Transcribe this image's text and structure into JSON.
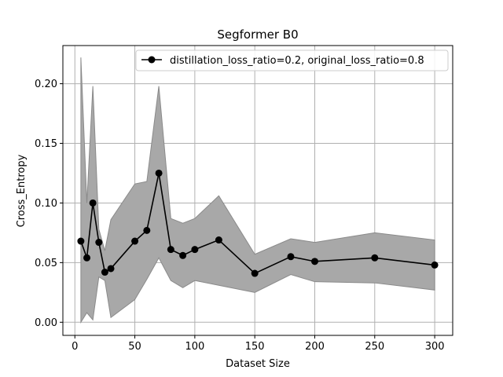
{
  "chart_data": {
    "type": "line",
    "title": "Segformer B0",
    "xlabel": "Dataset Size",
    "ylabel": "Cross_Entropy",
    "xlim": [
      -10,
      315
    ],
    "ylim": [
      -0.011,
      0.232
    ],
    "xticks": [
      0,
      50,
      100,
      150,
      200,
      250,
      300
    ],
    "xtick_labels": [
      "0",
      "50",
      "100",
      "150",
      "200",
      "250",
      "300"
    ],
    "yticks": [
      0.0,
      0.05,
      0.1,
      0.15,
      0.2
    ],
    "ytick_labels": [
      "0.00",
      "0.05",
      "0.10",
      "0.15",
      "0.20"
    ],
    "grid": true,
    "legend_position": "top-right",
    "series": [
      {
        "name": "distillation_loss_ratio=0.2, original_loss_ratio=0.8",
        "color": "#000000",
        "marker": "circle",
        "x": [
          5,
          10,
          15,
          20,
          25,
          30,
          50,
          60,
          70,
          80,
          90,
          100,
          120,
          150,
          180,
          200,
          250,
          300
        ],
        "y": [
          0.068,
          0.054,
          0.1,
          0.067,
          0.042,
          0.045,
          0.068,
          0.077,
          0.125,
          0.061,
          0.056,
          0.061,
          0.069,
          0.041,
          0.055,
          0.051,
          0.054,
          0.048
        ],
        "band_upper": [
          0.222,
          0.1,
          0.198,
          0.078,
          0.06,
          0.086,
          0.116,
          0.118,
          0.198,
          0.087,
          0.083,
          0.087,
          0.106,
          0.057,
          0.07,
          0.067,
          0.075,
          0.069
        ],
        "band_lower": [
          0.0,
          0.008,
          0.002,
          0.038,
          0.035,
          0.004,
          0.019,
          0.036,
          0.054,
          0.035,
          0.029,
          0.035,
          0.031,
          0.025,
          0.04,
          0.034,
          0.033,
          0.027
        ],
        "band_color": "#a8a8a8"
      }
    ]
  }
}
